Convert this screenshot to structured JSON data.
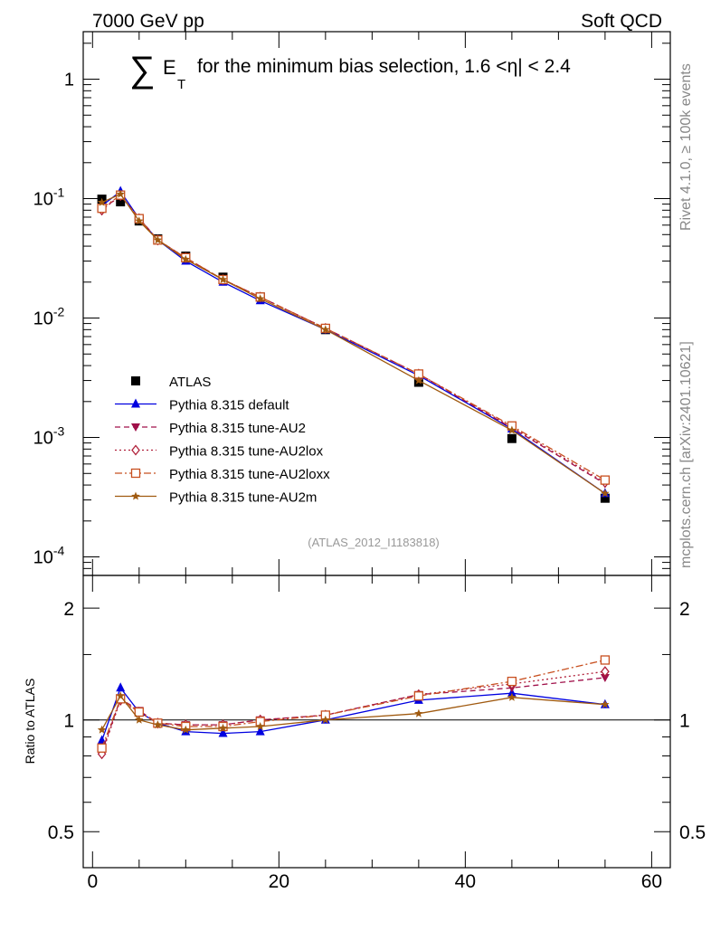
{
  "header": {
    "left": "7000 GeV pp",
    "right": "Soft QCD"
  },
  "side_labels": {
    "right_top": "Rivet 4.1.0, ≥ 100k events",
    "right_bottom": "mcplots.cern.ch [arXiv:2401.10621]"
  },
  "title": {
    "sum_symbol": "∑",
    "quantity": "E",
    "subscript": "T",
    "text": "for the minimum bias selection, 1.6 <η| < 2.4"
  },
  "watermark": "(ATLAS_2012_I1183818)",
  "chart_data": [
    {
      "type": "line",
      "panel": "main",
      "yscale": "log",
      "xlim": [
        -1,
        62
      ],
      "ylim": [
        7e-05,
        2.5
      ],
      "y_ticks": [
        {
          "value": 1,
          "label": "1"
        },
        {
          "value": 0.1,
          "label": "10^-1"
        },
        {
          "value": 0.01,
          "label": "10^-2"
        },
        {
          "value": 0.001,
          "label": "10^-3"
        },
        {
          "value": 0.0001,
          "label": "10^-4"
        }
      ],
      "x": [
        1,
        3,
        5,
        7,
        10,
        14,
        18,
        25,
        35,
        45,
        55
      ],
      "series": [
        {
          "name": "ATLAS",
          "color": "#000000",
          "marker": "square",
          "dash": "none",
          "values": [
            0.099,
            0.094,
            0.065,
            0.046,
            0.033,
            0.022,
            0.015,
            0.008,
            0.0029,
            0.00098,
            0.00031
          ]
        },
        {
          "name": "Pythia 8.315 default",
          "color": "#0000e0",
          "marker": "triangle-up",
          "dash": "solid",
          "values": [
            0.087,
            0.115,
            0.068,
            0.045,
            0.03,
            0.02,
            0.014,
            0.008,
            0.0033,
            0.00118,
            0.00034
          ]
        },
        {
          "name": "Pythia 8.315 tune-AU2",
          "color": "#a0104a",
          "marker": "triangle-down",
          "dash": "dashed",
          "values": [
            0.081,
            0.106,
            0.069,
            0.045,
            0.032,
            0.021,
            0.015,
            0.0082,
            0.0034,
            0.0012,
            0.00041
          ]
        },
        {
          "name": "Pythia 8.315 tune-AU2lox",
          "color": "#b0203a",
          "marker": "diamond",
          "dash": "dotted",
          "values": [
            0.08,
            0.106,
            0.068,
            0.045,
            0.032,
            0.021,
            0.015,
            0.0082,
            0.0034,
            0.00122,
            0.00042
          ]
        },
        {
          "name": "Pythia 8.315 tune-AU2loxx",
          "color": "#c85020",
          "marker": "square-open",
          "dash": "dashdot",
          "values": [
            0.083,
            0.107,
            0.068,
            0.045,
            0.032,
            0.021,
            0.015,
            0.0082,
            0.0034,
            0.00125,
            0.00044
          ]
        },
        {
          "name": "Pythia 8.315 tune-AU2m",
          "color": "#a05a10",
          "marker": "star",
          "dash": "solid",
          "values": [
            0.093,
            0.109,
            0.065,
            0.045,
            0.031,
            0.021,
            0.0145,
            0.008,
            0.003,
            0.00115,
            0.00034
          ]
        }
      ]
    },
    {
      "type": "line",
      "panel": "ratio",
      "ylabel": "Ratio to ATLAS",
      "yscale": "log",
      "xlim": [
        -1,
        62
      ],
      "ylim": [
        0.4,
        2.45
      ],
      "y_ticks": [
        {
          "value": 2,
          "label": "2"
        },
        {
          "value": 1,
          "label": "1"
        },
        {
          "value": 0.5,
          "label": "0.5"
        }
      ],
      "x_ticks": [
        {
          "value": 0,
          "label": "0"
        },
        {
          "value": 20,
          "label": "20"
        },
        {
          "value": 40,
          "label": "40"
        },
        {
          "value": 60,
          "label": "60"
        }
      ],
      "reference_line": 1,
      "x": [
        1,
        3,
        5,
        7,
        10,
        14,
        18,
        25,
        35,
        45,
        55
      ],
      "series": [
        {
          "name": "Pythia 8.315 default",
          "values": [
            0.88,
            1.22,
            1.05,
            0.98,
            0.93,
            0.92,
            0.93,
            1.0,
            1.13,
            1.18,
            1.1
          ]
        },
        {
          "name": "Pythia 8.315 tune-AU2",
          "values": [
            0.82,
            1.14,
            1.06,
            0.98,
            0.97,
            0.97,
            1.0,
            1.03,
            1.17,
            1.22,
            1.3
          ]
        },
        {
          "name": "Pythia 8.315 tune-AU2lox",
          "values": [
            0.81,
            1.13,
            1.05,
            0.98,
            0.97,
            0.97,
            1.0,
            1.03,
            1.17,
            1.25,
            1.35
          ]
        },
        {
          "name": "Pythia 8.315 tune-AU2loxx",
          "values": [
            0.84,
            1.14,
            1.05,
            0.98,
            0.96,
            0.96,
            0.99,
            1.03,
            1.16,
            1.27,
            1.45
          ]
        },
        {
          "name": "Pythia 8.315 tune-AU2m",
          "values": [
            0.94,
            1.16,
            1.0,
            0.97,
            0.94,
            0.95,
            0.96,
            1.0,
            1.04,
            1.15,
            1.1
          ]
        }
      ]
    }
  ]
}
